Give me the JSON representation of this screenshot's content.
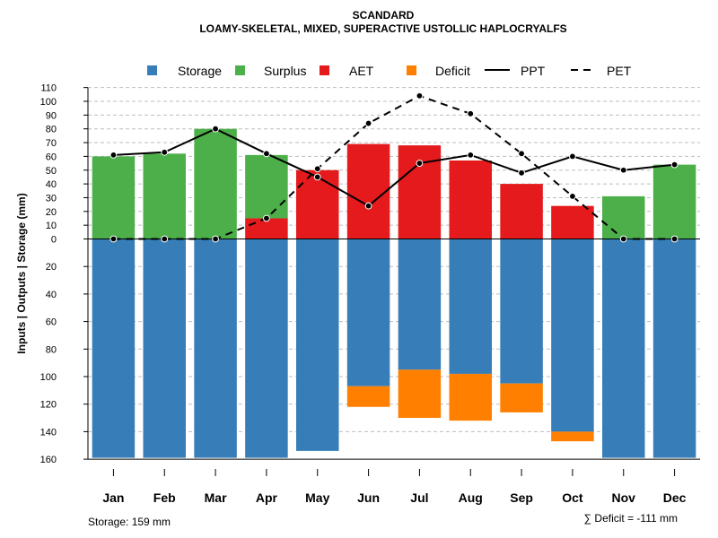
{
  "chart_data": {
    "type": "bar",
    "title": "SCANDARD",
    "subtitle": "LOAMY-SKELETAL, MIXED, SUPERACTIVE USTOLLIC HAPLOCRYALFS",
    "ylabel": "Inputs | Outputs | Storage     (mm)",
    "categories": [
      "Jan",
      "Feb",
      "Mar",
      "Apr",
      "May",
      "Jun",
      "Jul",
      "Aug",
      "Sep",
      "Oct",
      "Nov",
      "Dec"
    ],
    "upper_ticks": [
      "0",
      "10",
      "20",
      "30",
      "40",
      "50",
      "60",
      "70",
      "80",
      "90",
      "100",
      "110"
    ],
    "lower_ticks": [
      "20",
      "40",
      "60",
      "80",
      "100",
      "120",
      "140",
      "160"
    ],
    "ylim_upper": [
      0,
      110
    ],
    "ylim_lower": [
      0,
      160
    ],
    "legend": {
      "storage": "Storage",
      "surplus": "Surplus",
      "aet": "AET",
      "deficit": "Deficit",
      "ppt": "PPT",
      "pet": "PET"
    },
    "colors": {
      "storage": "#377EB8",
      "surplus": "#4DAF4A",
      "aet": "#E41A1C",
      "deficit": "#FF7F00",
      "grid": "#BEBEBE",
      "line": "#000000"
    },
    "series": {
      "aet": [
        0,
        0,
        0,
        15,
        50,
        69,
        68,
        57,
        40,
        24,
        0,
        0
      ],
      "surplus": [
        60,
        62,
        80,
        46,
        0,
        0,
        0,
        0,
        0,
        0,
        31,
        54
      ],
      "storage": [
        159,
        159,
        159,
        159,
        154,
        107,
        95,
        98,
        105,
        140,
        159,
        159
      ],
      "deficit": [
        0,
        0,
        0,
        0,
        0,
        15,
        35,
        34,
        21,
        7,
        0,
        0
      ],
      "ppt": [
        61,
        63,
        80,
        62,
        45,
        24,
        55,
        61,
        48,
        60,
        50,
        54
      ],
      "pet": [
        0,
        0,
        0,
        15,
        51,
        84,
        104,
        91,
        62,
        31,
        0,
        0
      ]
    },
    "storage_note": "Storage: 159 mm",
    "deficit_note": "∑ Deficit = -111 mm"
  }
}
